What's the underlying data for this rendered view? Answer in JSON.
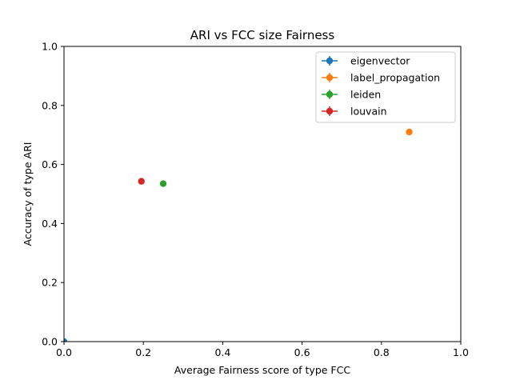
{
  "chart_data": {
    "type": "scatter",
    "title": "ARI vs FCC size Fairness",
    "xlabel": "Average Fairness score of type FCC",
    "ylabel": "Accuracy of type ARI",
    "xlim": [
      0.0,
      1.0
    ],
    "ylim": [
      0.0,
      1.0
    ],
    "xticks": [
      "0.0",
      "0.2",
      "0.4",
      "0.6",
      "0.8",
      "1.0"
    ],
    "yticks": [
      "0.0",
      "0.2",
      "0.4",
      "0.6",
      "0.8",
      "1.0"
    ],
    "grid": false,
    "legend_position": "top-right",
    "error_bars": true,
    "series": [
      {
        "name": "eigenvector",
        "color": "#1f77b4",
        "x": [
          0.0
        ],
        "y": [
          0.0
        ]
      },
      {
        "name": "label_propagation",
        "color": "#ff7f0e",
        "x": [
          0.87
        ],
        "y": [
          0.71
        ]
      },
      {
        "name": "leiden",
        "color": "#2ca02c",
        "x": [
          0.25
        ],
        "y": [
          0.535
        ]
      },
      {
        "name": "louvain",
        "color": "#d62728",
        "x": [
          0.195
        ],
        "y": [
          0.543
        ]
      }
    ]
  }
}
